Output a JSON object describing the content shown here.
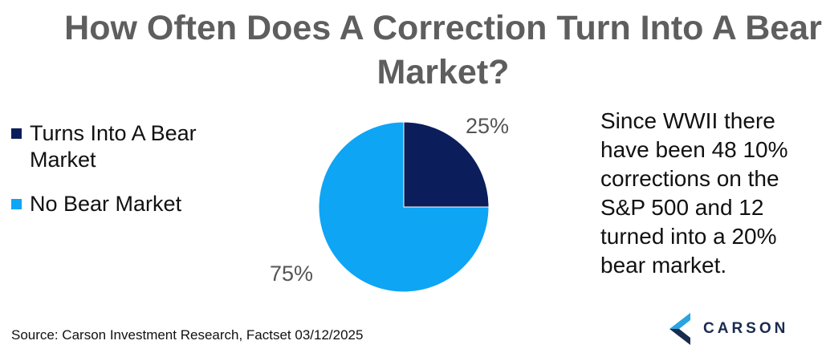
{
  "title": "How Often Does A Correction Turn Into A Bear Market?",
  "note": "Since WWII there have been 48 10% corrections on the S&P 500 and 12 turned into a 20% bear market.",
  "source": "Source: Carson Investment Research, Factset 03/12/2025",
  "logo": {
    "text": "CARSON",
    "icon": "carson-chevron-logo"
  },
  "chart_data": {
    "type": "pie",
    "title": "How Often Does A Correction Turn Into A Bear Market?",
    "slices": [
      {
        "label": "Turns Into A Bear Market",
        "value": 25,
        "value_label": "25%",
        "color": "#0b1e5b"
      },
      {
        "label": "No Bear Market",
        "value": 75,
        "value_label": "75%",
        "color": "#0ea5f5"
      }
    ],
    "legend_position": "left"
  }
}
